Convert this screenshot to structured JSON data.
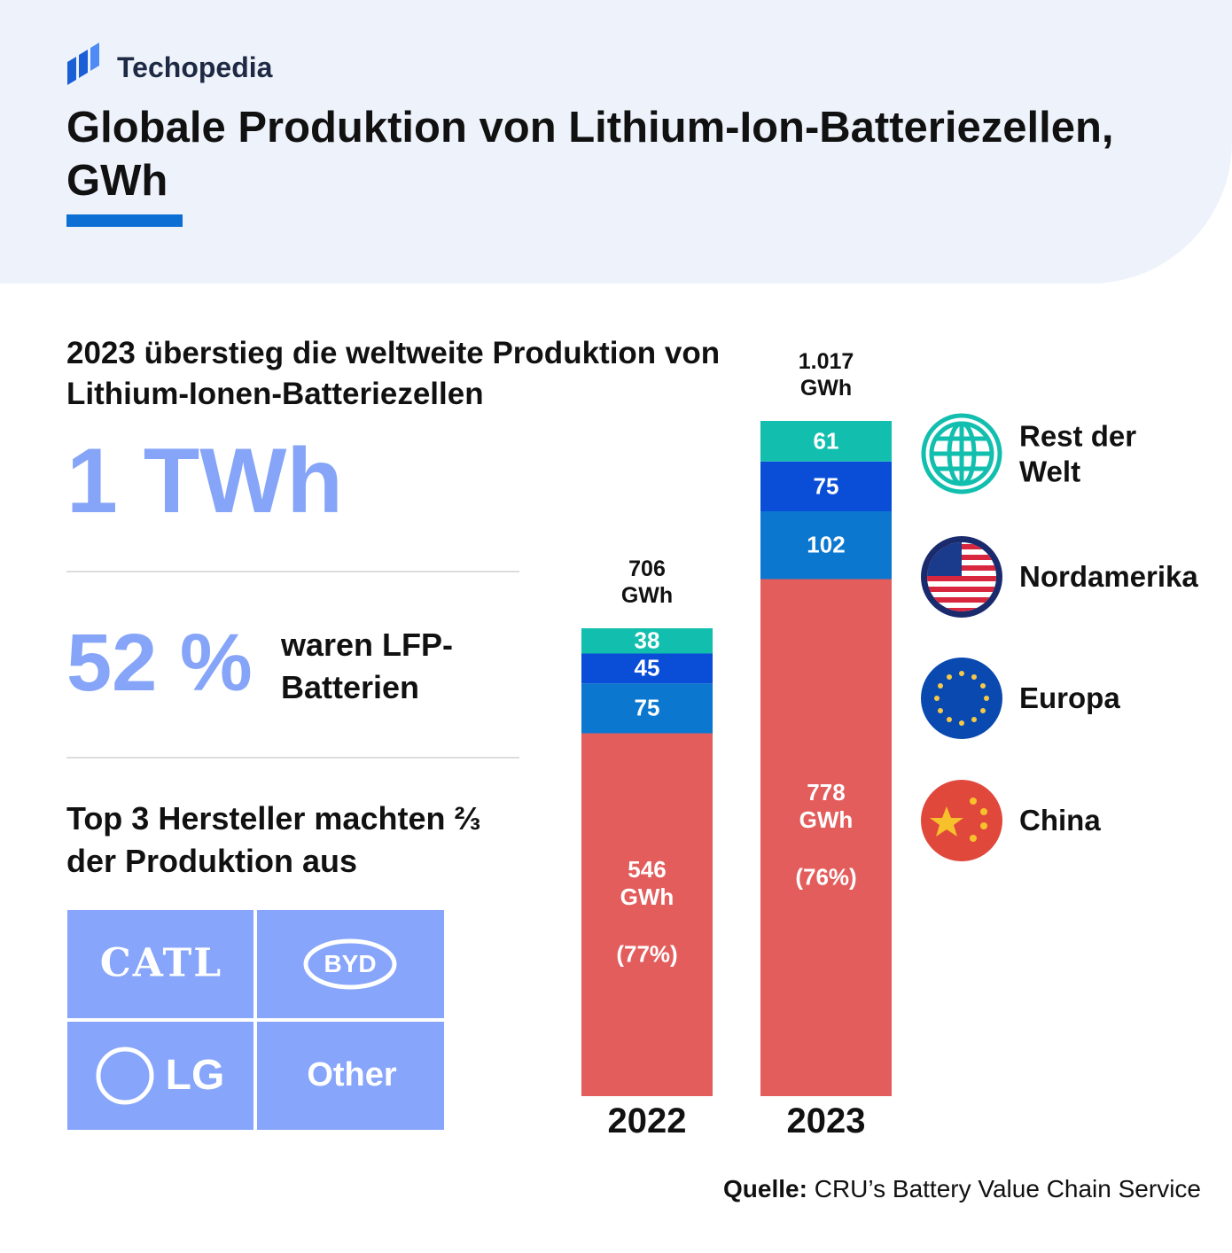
{
  "header": {
    "brand": "Techopedia"
  },
  "stats": {
    "intro": "2023 überstieg die weltweite Produktion von Lithium-Ionen-Batteriezellen",
    "big": "1 TWh",
    "lfp_share": "52 %",
    "lfp_text": "waren LFP-Batterien",
    "makers_text": "Top 3 Hersteller machten ⅔ der Produktion aus",
    "makers": [
      "CATL",
      "BYD",
      "LG",
      "Other"
    ]
  },
  "source": {
    "label": "Quelle:",
    "text": "CRU’s Battery Value Chain Service"
  },
  "chart_data": {
    "type": "bar",
    "stacked": true,
    "title": "Globale Produktion von Lithium-Ion-Batteriezellen, GWh",
    "categories": [
      "2022",
      "2023"
    ],
    "total_labels": [
      "706 GWh",
      "1.017 GWh"
    ],
    "series": [
      {
        "name": "China",
        "color": "#e35d5d",
        "values": [
          546,
          778
        ],
        "value_labels": [
          "546 GWh",
          "778 GWh"
        ],
        "shares": [
          "(77%)",
          "(76%)"
        ]
      },
      {
        "name": "Europa",
        "color": "#0b77cf",
        "values": [
          75,
          102
        ]
      },
      {
        "name": "Nordamerika",
        "color": "#0a4ed8",
        "values": [
          45,
          75
        ]
      },
      {
        "name": "Rest der Welt",
        "color": "#12bfae",
        "values": [
          38,
          61
        ]
      }
    ]
  }
}
